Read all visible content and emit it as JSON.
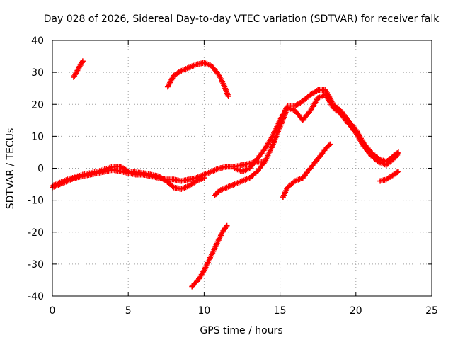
{
  "chart_data": {
    "type": "scatter",
    "title": "Day 028 of 2026, Sidereal Day-to-day VTEC variation (SDTVAR) for receiver falk",
    "xlabel": "GPS time / hours",
    "ylabel": "SDTVAR / TECUs",
    "xlim": [
      0,
      25
    ],
    "ylim": [
      -40,
      40
    ],
    "xticks": [
      0,
      5,
      10,
      15,
      20,
      25
    ],
    "yticks": [
      -40,
      -30,
      -20,
      -10,
      0,
      10,
      20,
      30,
      40
    ],
    "grid": true,
    "marker": "+",
    "color": "#ff0000",
    "series": [
      {
        "name": "arc-a",
        "points": [
          [
            0,
            -6
          ],
          [
            0.5,
            -5
          ],
          [
            1,
            -4
          ],
          [
            1.5,
            -3
          ],
          [
            2,
            -2.5
          ],
          [
            2.5,
            -2
          ],
          [
            3,
            -1.5
          ],
          [
            3.5,
            -1
          ],
          [
            4,
            -0.5
          ],
          [
            4.5,
            -1
          ],
          [
            5,
            -1.5
          ],
          [
            5.5,
            -2
          ],
          [
            6,
            -2
          ],
          [
            6.5,
            -2.5
          ],
          [
            7,
            -3
          ],
          [
            7.5,
            -3.5
          ],
          [
            8,
            -3.5
          ],
          [
            8.5,
            -4
          ],
          [
            9,
            -3.5
          ],
          [
            9.5,
            -3
          ],
          [
            10,
            -2
          ],
          [
            10.5,
            -1
          ],
          [
            11,
            0
          ],
          [
            11.5,
            0.5
          ],
          [
            12,
            0.5
          ],
          [
            12.5,
            1
          ],
          [
            13,
            1.5
          ],
          [
            13.5,
            2
          ],
          [
            14,
            2
          ]
        ]
      },
      {
        "name": "arc-b",
        "points": [
          [
            0,
            -5.5
          ],
          [
            1,
            -3.5
          ],
          [
            2,
            -2
          ],
          [
            3,
            -1
          ],
          [
            4,
            0.5
          ],
          [
            4.5,
            0.5
          ],
          [
            5,
            -1
          ],
          [
            6,
            -1.5
          ],
          [
            7,
            -2.5
          ],
          [
            7.5,
            -4
          ],
          [
            8,
            -6
          ],
          [
            8.5,
            -6.5
          ],
          [
            9,
            -5.5
          ],
          [
            9.5,
            -4
          ],
          [
            10,
            -3
          ]
        ]
      },
      {
        "name": "arc-c",
        "points": [
          [
            1.4,
            28.5
          ],
          [
            1.7,
            31
          ],
          [
            2,
            33.5
          ]
        ]
      },
      {
        "name": "arc-d",
        "points": [
          [
            7.6,
            25.5
          ],
          [
            8,
            29
          ],
          [
            8.5,
            30.5
          ],
          [
            9,
            31.5
          ],
          [
            9.5,
            32.5
          ],
          [
            10,
            33
          ],
          [
            10.5,
            32
          ],
          [
            11,
            29
          ],
          [
            11.3,
            26
          ],
          [
            11.6,
            22.5
          ]
        ]
      },
      {
        "name": "arc-e",
        "points": [
          [
            9.2,
            -37
          ],
          [
            9.6,
            -35
          ],
          [
            10,
            -32
          ],
          [
            10.4,
            -28
          ],
          [
            10.8,
            -24
          ],
          [
            11.2,
            -20
          ],
          [
            11.5,
            -18
          ]
        ]
      },
      {
        "name": "arc-f",
        "points": [
          [
            10.7,
            -8.5
          ],
          [
            11,
            -7
          ],
          [
            11.5,
            -6
          ],
          [
            12,
            -5
          ],
          [
            12.5,
            -4
          ],
          [
            13,
            -3
          ],
          [
            13.5,
            -1
          ],
          [
            14,
            2
          ],
          [
            14.5,
            7
          ],
          [
            15,
            13
          ],
          [
            15.5,
            19
          ],
          [
            16,
            18
          ],
          [
            16.5,
            15
          ],
          [
            17,
            18
          ],
          [
            17.5,
            22
          ],
          [
            18,
            23
          ],
          [
            18.5,
            19
          ],
          [
            19,
            17
          ],
          [
            19.5,
            14
          ],
          [
            20,
            11
          ],
          [
            20.5,
            7
          ],
          [
            21,
            4
          ],
          [
            21.5,
            2
          ],
          [
            22,
            1
          ],
          [
            22.5,
            3
          ],
          [
            22.8,
            4.5
          ]
        ]
      },
      {
        "name": "arc-g",
        "points": [
          [
            12,
            0
          ],
          [
            12.5,
            -1
          ],
          [
            13,
            0
          ],
          [
            13.5,
            3
          ],
          [
            14,
            6
          ],
          [
            14.5,
            10
          ],
          [
            15,
            15
          ],
          [
            15.5,
            19.5
          ],
          [
            16,
            19.5
          ],
          [
            16.5,
            21
          ],
          [
            17,
            23
          ],
          [
            17.5,
            24.5
          ],
          [
            18,
            24.5
          ],
          [
            18.5,
            20
          ],
          [
            19,
            18
          ],
          [
            19.5,
            15
          ],
          [
            20,
            12
          ],
          [
            20.5,
            8
          ],
          [
            21,
            5
          ],
          [
            21.5,
            3
          ],
          [
            22,
            2
          ],
          [
            22.5,
            4
          ],
          [
            22.8,
            5
          ]
        ]
      },
      {
        "name": "arc-h",
        "points": [
          [
            15.2,
            -9
          ],
          [
            15.5,
            -6
          ],
          [
            16,
            -4
          ],
          [
            16.5,
            -3
          ],
          [
            17,
            0
          ],
          [
            17.5,
            3
          ],
          [
            18,
            6
          ],
          [
            18.3,
            7.5
          ]
        ]
      },
      {
        "name": "arc-i",
        "points": [
          [
            21.6,
            -4
          ],
          [
            22,
            -3.5
          ],
          [
            22.5,
            -2
          ],
          [
            22.8,
            -1
          ]
        ]
      }
    ]
  }
}
